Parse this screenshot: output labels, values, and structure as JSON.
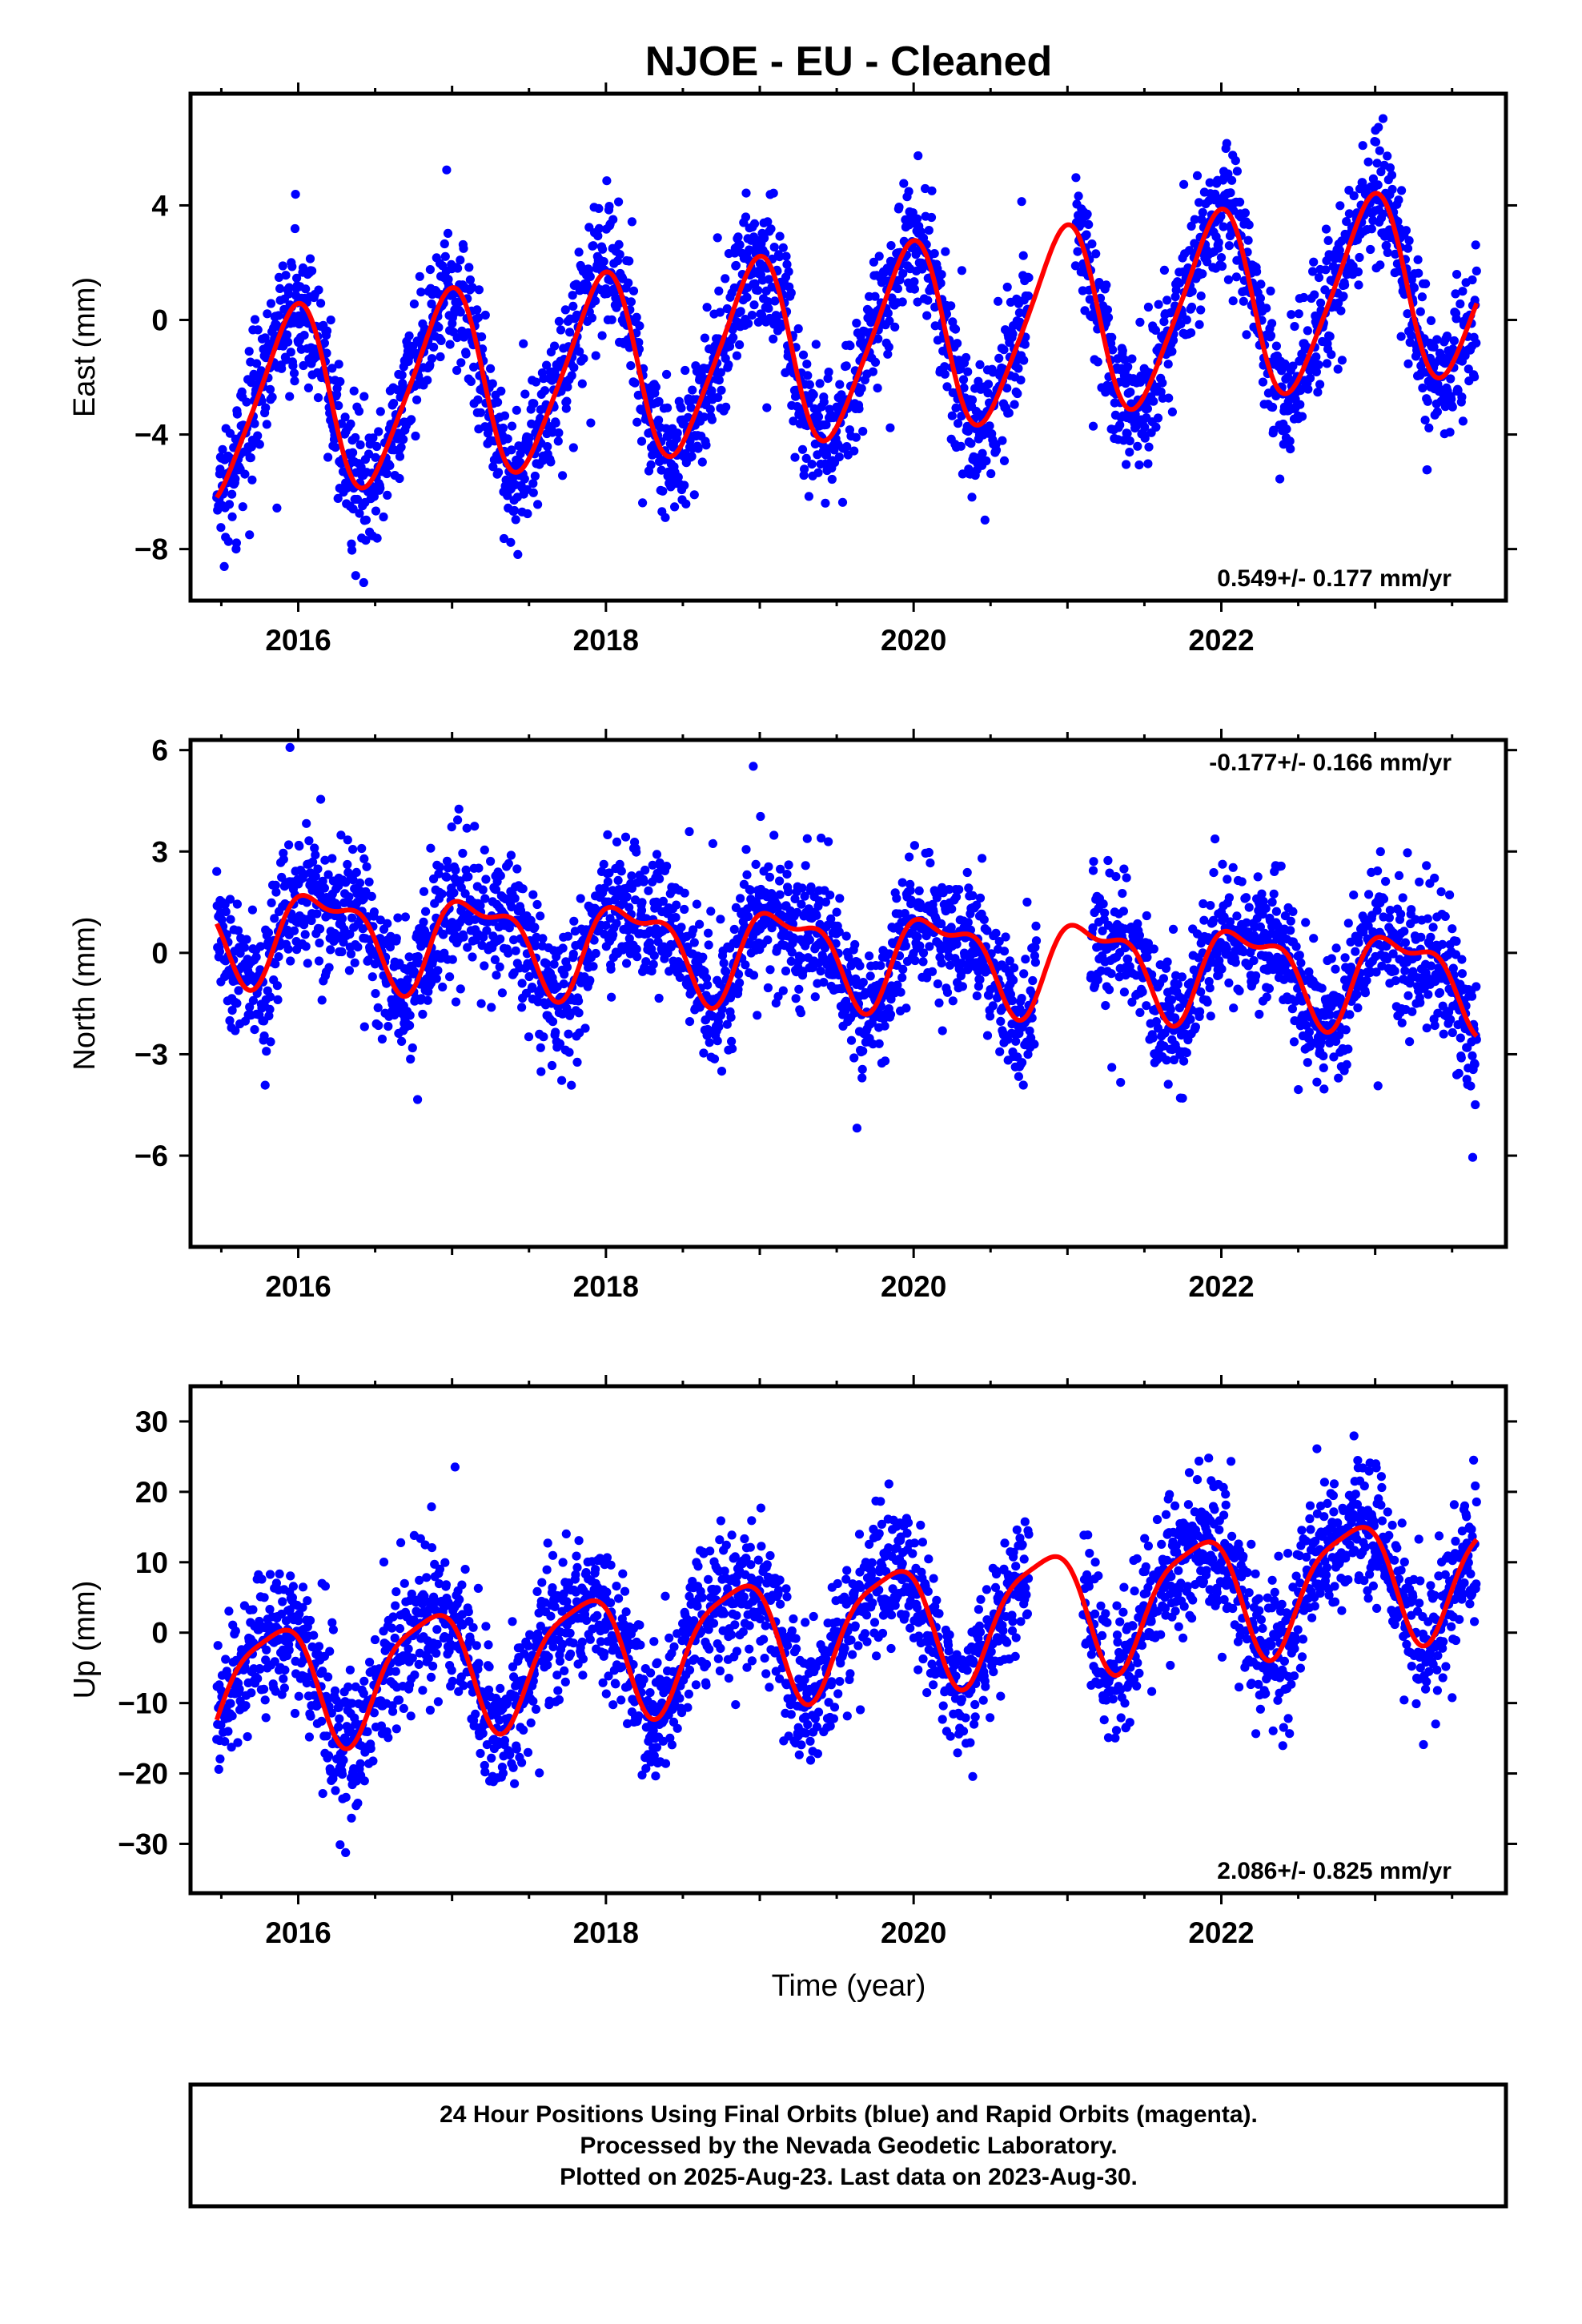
{
  "title": "NJOE  - EU - Cleaned",
  "x_axis_label": "Time (year)",
  "colors": {
    "points": "#0000ff",
    "fit": "#ff0000",
    "frame": "#000000"
  },
  "footer": {
    "line1": "24 Hour Positions Using Final Orbits (blue) and Rapid Orbits (magenta).",
    "line2": "Processed by the Nevada Geodetic Laboratory.",
    "line3": "Plotted on 2025-Aug-23. Last data on 2023-Aug-30."
  },
  "chart_data": [
    {
      "type": "scatter",
      "component": "east",
      "ylabel": "East (mm)",
      "xlim": [
        2015.3,
        2023.85
      ],
      "ylim": [
        -9.8,
        7.9
      ],
      "xticks": [
        2016,
        2018,
        2020,
        2022
      ],
      "xtick_labels": [
        "2016",
        "2018",
        "2020",
        "2022"
      ],
      "yticks": [
        -8,
        -4,
        0,
        4
      ],
      "ytick_labels": [
        "−8",
        "−4",
        "0",
        "4"
      ],
      "rate_label": "0.549+/- 0.177 mm/yr",
      "rate_position": "bottom-right",
      "model": {
        "offset": -0.9,
        "rate": 0.549,
        "annual_amp": 3.2,
        "annual_phase": 1.8,
        "semi_amp": 0.5,
        "semi_phase": 0.6,
        "t0": 2019.5
      },
      "noise": 1.15,
      "gap": [
        2020.75,
        2021.05
      ],
      "series": [
        {
          "name": "Final Orbits",
          "style": "points"
        },
        {
          "name": "model fit",
          "style": "line"
        }
      ]
    },
    {
      "type": "scatter",
      "component": "north",
      "ylabel": "North (mm)",
      "xlim": [
        2015.3,
        2023.85
      ],
      "ylim": [
        -8.7,
        6.3
      ],
      "xticks": [
        2016,
        2018,
        2020,
        2022
      ],
      "xtick_labels": [
        "2016",
        "2018",
        "2020",
        "2022"
      ],
      "yticks": [
        -6,
        -3,
        0,
        3,
        6
      ],
      "ytick_labels": [
        "−6",
        "−3",
        "0",
        "3",
        "6"
      ],
      "rate_label": "-0.177+/- 0.166 mm/yr",
      "rate_position": "top-right",
      "model": {
        "offset": 0.0,
        "rate": -0.177,
        "annual_amp": 1.25,
        "annual_phase": 0.5,
        "semi_amp": 0.55,
        "semi_phase": 2.2,
        "t0": 2019.5
      },
      "noise": 0.95,
      "gap": [
        2020.8,
        2021.15
      ],
      "series": [
        {
          "name": "Final Orbits",
          "style": "points"
        },
        {
          "name": "model fit",
          "style": "line"
        }
      ]
    },
    {
      "type": "scatter",
      "component": "up",
      "ylabel": "Up (mm)",
      "xlim": [
        2015.3,
        2023.85
      ],
      "ylim": [
        -37,
        35
      ],
      "xticks": [
        2016,
        2018,
        2020,
        2022
      ],
      "xtick_labels": [
        "2016",
        "2018",
        "2020",
        "2022"
      ],
      "yticks": [
        -30,
        -20,
        -10,
        0,
        10,
        20,
        30
      ],
      "ytick_labels": [
        "−30",
        "−20",
        "−10",
        "0",
        "10",
        "20",
        "30"
      ],
      "rate_label": "2.086+/- 0.825 mm/yr",
      "rate_position": "bottom-right",
      "model": {
        "offset": 0.5,
        "rate": 2.086,
        "annual_amp": 8.5,
        "annual_phase": 2.6,
        "semi_amp": 2.0,
        "semi_phase": 1.0,
        "t0": 2019.5
      },
      "noise": 4.8,
      "gap": [
        2020.75,
        2021.1
      ],
      "series": [
        {
          "name": "Final Orbits",
          "style": "points"
        },
        {
          "name": "model fit",
          "style": "line"
        }
      ]
    }
  ]
}
